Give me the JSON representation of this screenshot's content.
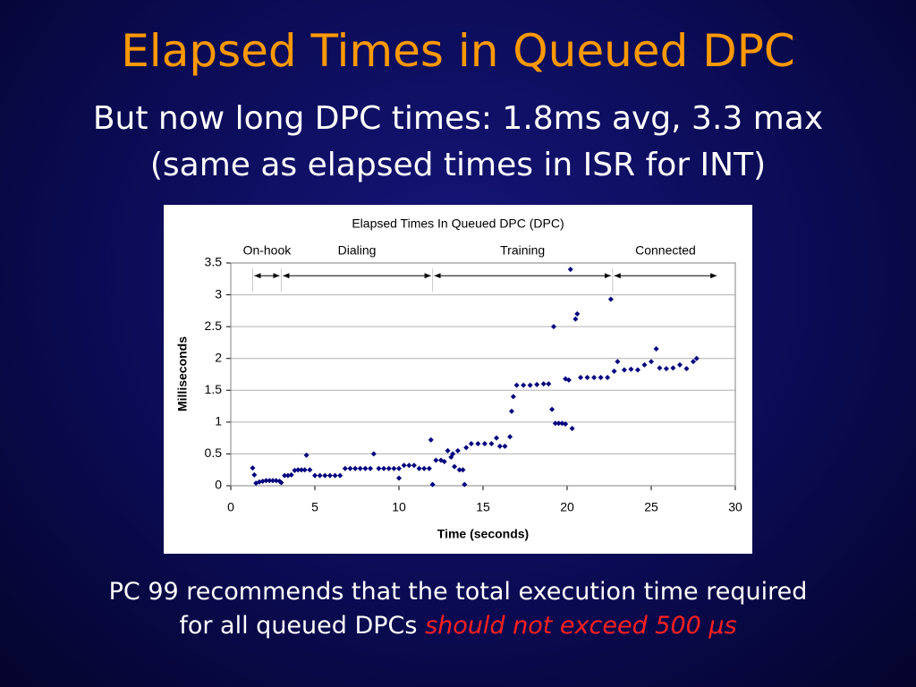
{
  "slide": {
    "title": "Elapsed Times in Queued DPC",
    "subtitle": [
      "But now long DPC times: 1.8ms avg, 3.3 max",
      "(same as elapsed times in ISR for INT)"
    ],
    "footer": {
      "line1": "PC 99 recommends that the total execution time required",
      "line2": "for all queued DPCs",
      "highlight": "should not exceed 500 µs"
    }
  },
  "chart_data": {
    "type": "scatter",
    "title": "Elapsed Times In Queued DPC (DPC)",
    "xlabel": "Time (seconds)",
    "ylabel": "Milliseconds",
    "xlim": [
      0,
      30
    ],
    "xticks": [
      0,
      5,
      10,
      15,
      20,
      25,
      30
    ],
    "ylim": [
      0,
      3.5
    ],
    "yticks": [
      0,
      0.5,
      1,
      1.5,
      2,
      2.5,
      3,
      3.5
    ],
    "grid": true,
    "color": "#000080",
    "phases": [
      {
        "label": "On-hook",
        "x": [
          1.3,
          3.0
        ]
      },
      {
        "label": "Dialing",
        "x": [
          3.0,
          12.0
        ]
      },
      {
        "label": "Training",
        "x": [
          12.0,
          22.7
        ]
      },
      {
        "label": "Connected",
        "x": [
          22.7,
          29.0
        ]
      }
    ],
    "phase_y": 3.3,
    "x": [
      1.3,
      1.4,
      1.5,
      1.7,
      1.9,
      2.1,
      2.3,
      2.5,
      2.7,
      2.9,
      3.0,
      3.2,
      3.4,
      3.6,
      3.8,
      4.0,
      4.2,
      4.4,
      4.5,
      4.7,
      5.0,
      5.3,
      5.6,
      5.9,
      6.2,
      6.5,
      6.8,
      7.1,
      7.4,
      7.7,
      8.0,
      8.3,
      8.5,
      8.8,
      9.1,
      9.4,
      9.7,
      10.0,
      10.0,
      10.3,
      10.6,
      10.9,
      11.2,
      11.5,
      11.8,
      11.9,
      12.0,
      12.2,
      12.5,
      12.7,
      12.9,
      13.1,
      13.2,
      13.3,
      13.5,
      13.6,
      13.8,
      13.9,
      14.0,
      14.3,
      14.7,
      15.1,
      15.5,
      15.8,
      16.0,
      16.3,
      16.6,
      16.7,
      16.8,
      17.0,
      17.4,
      17.8,
      18.2,
      18.6,
      18.9,
      19.1,
      19.2,
      19.3,
      19.5,
      19.7,
      19.9,
      19.9,
      20.1,
      20.2,
      20.3,
      20.5,
      20.6,
      20.8,
      21.2,
      21.6,
      22.0,
      22.4,
      22.6,
      22.8,
      23.0,
      23.4,
      23.8,
      24.2,
      24.6,
      25.0,
      25.3,
      25.5,
      25.9,
      26.3,
      26.7,
      27.1,
      27.5,
      27.7
    ],
    "values": [
      0.28,
      0.17,
      0.04,
      0.06,
      0.07,
      0.08,
      0.08,
      0.08,
      0.08,
      0.07,
      0.05,
      0.16,
      0.16,
      0.17,
      0.24,
      0.25,
      0.25,
      0.25,
      0.48,
      0.25,
      0.16,
      0.16,
      0.16,
      0.16,
      0.16,
      0.16,
      0.27,
      0.27,
      0.27,
      0.27,
      0.27,
      0.27,
      0.5,
      0.27,
      0.27,
      0.27,
      0.27,
      0.27,
      0.12,
      0.32,
      0.32,
      0.32,
      0.27,
      0.27,
      0.27,
      0.72,
      0.02,
      0.4,
      0.4,
      0.38,
      0.55,
      0.45,
      0.5,
      0.3,
      0.55,
      0.25,
      0.25,
      0.02,
      0.6,
      0.66,
      0.66,
      0.66,
      0.66,
      0.75,
      0.62,
      0.62,
      0.77,
      1.17,
      1.4,
      1.58,
      1.58,
      1.58,
      1.59,
      1.6,
      1.6,
      1.2,
      2.5,
      0.98,
      0.98,
      0.98,
      0.97,
      1.68,
      1.66,
      3.4,
      0.9,
      2.62,
      2.7,
      1.7,
      1.7,
      1.7,
      1.7,
      1.7,
      2.93,
      1.8,
      1.95,
      1.82,
      1.83,
      1.82,
      1.9,
      1.95,
      2.15,
      1.85,
      1.84,
      1.85,
      1.9,
      1.84,
      1.95,
      2.0
    ]
  }
}
